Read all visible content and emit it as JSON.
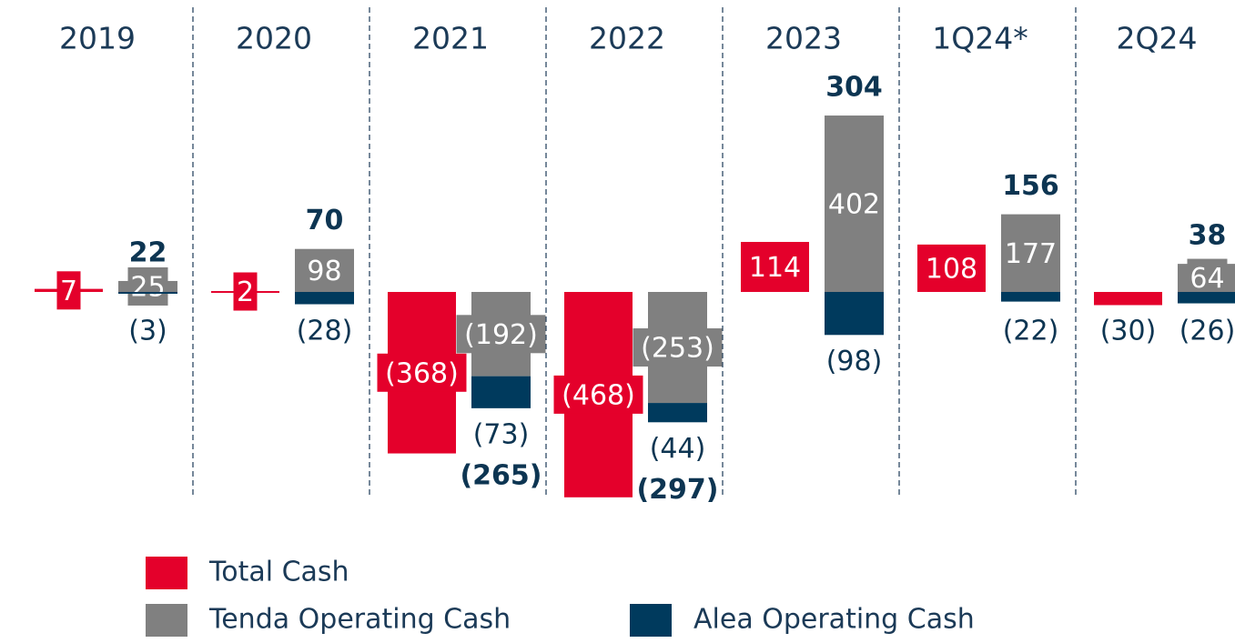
{
  "chart_data": {
    "type": "bar",
    "categories": [
      "2019",
      "2020",
      "2021",
      "2022",
      "2023",
      "1Q24*",
      "2Q24"
    ],
    "series": [
      {
        "name": "Total Cash",
        "color": "#e4002b",
        "values": [
          7,
          2,
          -368,
          -468,
          114,
          108,
          -30
        ],
        "value_labels": [
          "7",
          "2",
          "(368)",
          "(468)",
          "114",
          "108",
          "(30)"
        ]
      },
      {
        "name": "Tenda Operating Cash",
        "color": "#808080",
        "values": [
          25,
          98,
          -192,
          -253,
          402,
          177,
          64
        ],
        "value_labels": [
          "25",
          "98",
          "(192)",
          "(253)",
          "402",
          "177",
          "64"
        ]
      },
      {
        "name": "Alea Operating Cash",
        "color": "#003a5d",
        "values": [
          -3,
          -28,
          -73,
          -44,
          -98,
          -22,
          -26
        ],
        "value_labels": [
          "(3)",
          "(28)",
          "(73)",
          "(44)",
          "(98)",
          "(22)",
          "(26)"
        ]
      }
    ],
    "totals": [
      22,
      70,
      -265,
      -297,
      304,
      156,
      38
    ],
    "totals_labels": [
      "22",
      "70",
      "(265)",
      "(297)",
      "304",
      "156",
      "38"
    ],
    "ylim": [
      -480,
      440
    ]
  }
}
